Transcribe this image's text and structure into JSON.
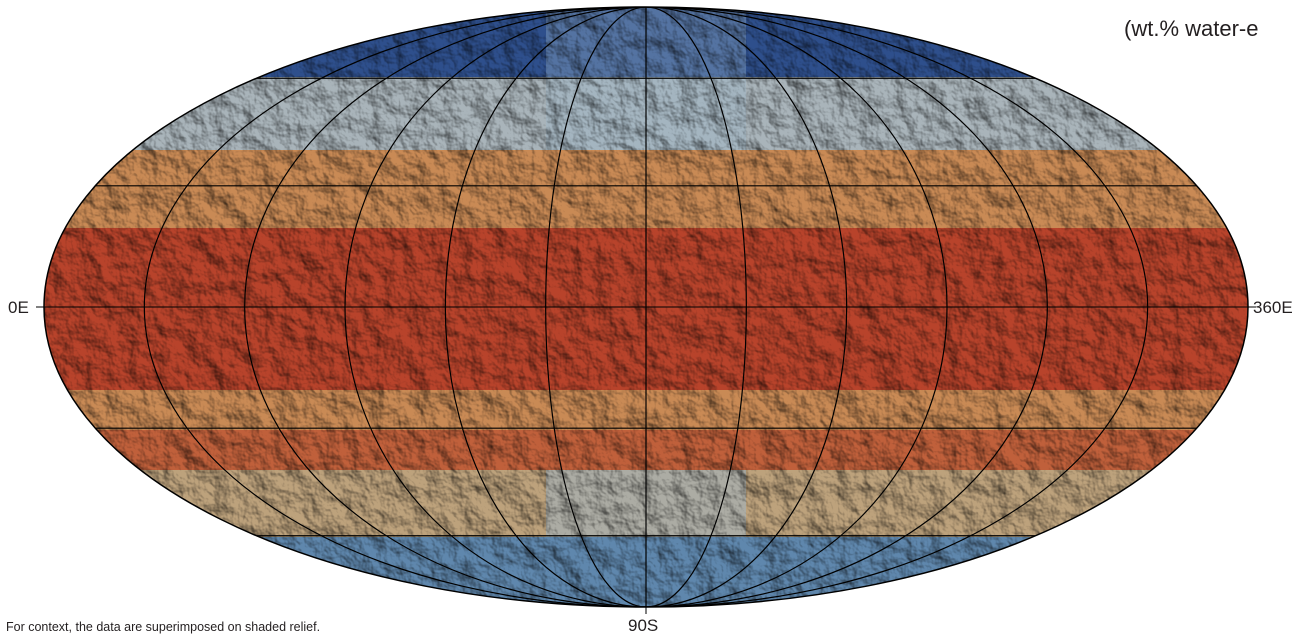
{
  "map": {
    "unit_label": "(wt.% water-e",
    "left_label": "0E",
    "right_label": "360E",
    "bottom_label": "90S",
    "caption": "For context, the data are superimposed on shaded relief."
  }
}
